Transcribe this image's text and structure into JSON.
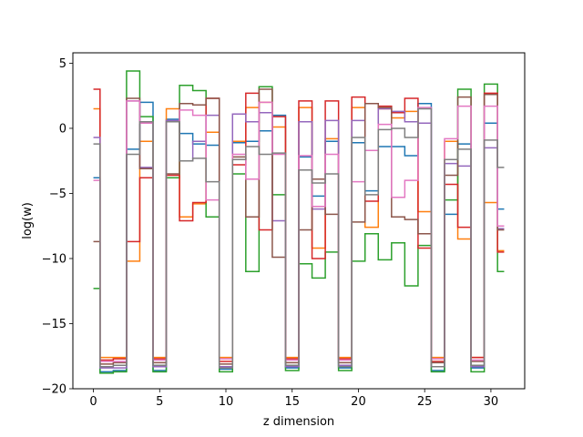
{
  "chart_data": {
    "type": "line",
    "drawstyle": "steps-mid",
    "title": "",
    "xlabel": "z dimension",
    "ylabel": "log(w)",
    "xlim": [
      -1.55,
      32.55
    ],
    "ylim": [
      -20,
      5.8
    ],
    "xticks": [
      0,
      5,
      10,
      15,
      20,
      25,
      30
    ],
    "yticks": [
      5,
      0,
      -5,
      -10,
      -15,
      -20
    ],
    "grid": false,
    "legend": "none",
    "x": [
      0,
      1,
      2,
      3,
      4,
      5,
      6,
      7,
      8,
      9,
      10,
      11,
      12,
      13,
      14,
      15,
      16,
      17,
      18,
      19,
      20,
      21,
      22,
      23,
      24,
      25,
      26,
      27,
      28,
      29,
      30,
      31
    ],
    "series": [
      {
        "color": "#1f77b4",
        "values": [
          -3.8,
          -18.7,
          -18.6,
          -1.6,
          2.0,
          -18.6,
          0.7,
          -0.4,
          -1.2,
          -1.3,
          -18.5,
          -1.1,
          -1.0,
          -0.2,
          1.0,
          -18.4,
          -2.2,
          -5.2,
          -1.0,
          -18.4,
          -1.1,
          -4.8,
          -1.4,
          -1.4,
          -2.1,
          1.9,
          -18.6,
          -6.6,
          -1.2,
          -18.4,
          0.4,
          -6.2
        ]
      },
      {
        "color": "#ff7f0e",
        "values": [
          1.5,
          -17.6,
          -17.6,
          -10.2,
          -1.0,
          -17.6,
          1.5,
          -6.8,
          -5.8,
          -0.3,
          -17.6,
          -1.0,
          1.6,
          2.0,
          0.1,
          -17.6,
          1.6,
          -9.2,
          -0.8,
          -17.6,
          1.6,
          -7.6,
          1.5,
          0.8,
          1.3,
          -6.4,
          -17.6,
          -1.0,
          -8.5,
          -17.6,
          -5.7,
          -9.4
        ]
      },
      {
        "color": "#2ca02c",
        "values": [
          -12.3,
          -18.8,
          -18.7,
          4.4,
          0.9,
          -18.7,
          -3.8,
          3.3,
          2.9,
          -6.8,
          -18.7,
          -3.5,
          -11.0,
          3.2,
          -5.1,
          -18.6,
          -10.4,
          -11.5,
          -9.5,
          -18.6,
          -10.2,
          -8.1,
          -10.1,
          -8.8,
          -12.1,
          -9.0,
          -18.7,
          -5.5,
          3.0,
          -18.7,
          3.4,
          -11.0
        ]
      },
      {
        "color": "#d62728",
        "values": [
          3.0,
          -17.8,
          -17.7,
          -8.7,
          -3.8,
          -17.7,
          -3.6,
          -7.1,
          -5.7,
          2.3,
          -17.9,
          -2.8,
          2.7,
          -7.8,
          0.9,
          -17.7,
          2.1,
          -10.0,
          2.1,
          -17.7,
          2.4,
          -5.6,
          1.7,
          1.2,
          2.3,
          -9.2,
          -17.9,
          -4.3,
          -7.6,
          -17.6,
          2.7,
          -9.5
        ]
      },
      {
        "color": "#9467bd",
        "values": [
          -0.7,
          -18.4,
          -18.4,
          2.1,
          -3.0,
          -18.3,
          0.6,
          -2.5,
          -1.0,
          1.0,
          -18.3,
          1.1,
          0.5,
          1.2,
          -7.1,
          -18.3,
          0.5,
          -6.2,
          0.6,
          -18.2,
          0.6,
          -1.7,
          1.5,
          1.3,
          0.5,
          0.4,
          -18.3,
          -2.7,
          -2.9,
          -18.3,
          -1.5,
          -7.7
        ]
      },
      {
        "color": "#8c564b",
        "values": [
          -8.7,
          -18.1,
          -18.0,
          2.3,
          -3.1,
          -18.0,
          -3.5,
          1.9,
          1.8,
          2.3,
          -18.1,
          -2.2,
          -6.8,
          3.0,
          -9.9,
          -18.0,
          -7.8,
          -3.9,
          -6.6,
          -18.0,
          -7.2,
          1.9,
          1.6,
          -6.8,
          -7.0,
          -8.1,
          -18.0,
          -3.6,
          2.4,
          -17.9,
          2.6,
          -7.8
        ]
      },
      {
        "color": "#e377c2",
        "values": [
          -4.0,
          -17.9,
          -17.9,
          2.1,
          0.4,
          -17.8,
          0.5,
          1.4,
          1.0,
          -5.5,
          -17.7,
          -2.0,
          -3.9,
          2.0,
          -2.0,
          -17.8,
          -2.1,
          -6.0,
          -2.0,
          -17.8,
          -4.1,
          -1.7,
          0.3,
          -5.3,
          -4.0,
          1.6,
          -17.7,
          -0.8,
          1.7,
          -17.8,
          1.7,
          -7.5
        ]
      },
      {
        "color": "#7f7f7f",
        "values": [
          -1.2,
          -18.3,
          -18.2,
          -2.0,
          0.5,
          -18.2,
          0.5,
          -2.5,
          -2.3,
          -4.1,
          -18.4,
          -2.4,
          -1.4,
          -2.0,
          -1.9,
          -18.2,
          -3.2,
          -4.2,
          -3.5,
          -18.3,
          -0.7,
          -5.1,
          -0.1,
          0.0,
          -0.7,
          1.5,
          -18.3,
          -2.4,
          -1.6,
          -18.2,
          -0.9,
          -3.0
        ]
      }
    ]
  }
}
